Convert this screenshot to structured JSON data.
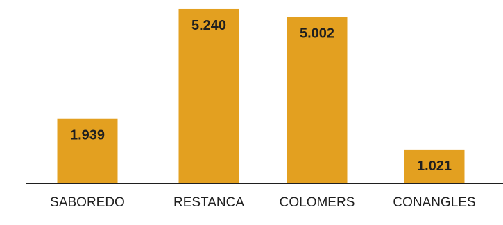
{
  "chart_data": {
    "type": "bar",
    "categories": [
      "SABOREDO",
      "RESTANCA",
      "COLOMERS",
      "CONANGLES"
    ],
    "values": [
      1.939,
      5.24,
      5.002,
      1.021
    ],
    "value_labels": [
      "1.939",
      "5.240",
      "5.002",
      "1.021"
    ],
    "title": "",
    "xlabel": "",
    "ylabel": "",
    "ylim": [
      0,
      5.5
    ],
    "grid": false,
    "bar_color": "#E3A020",
    "axis_color": "#1f1f1f"
  }
}
